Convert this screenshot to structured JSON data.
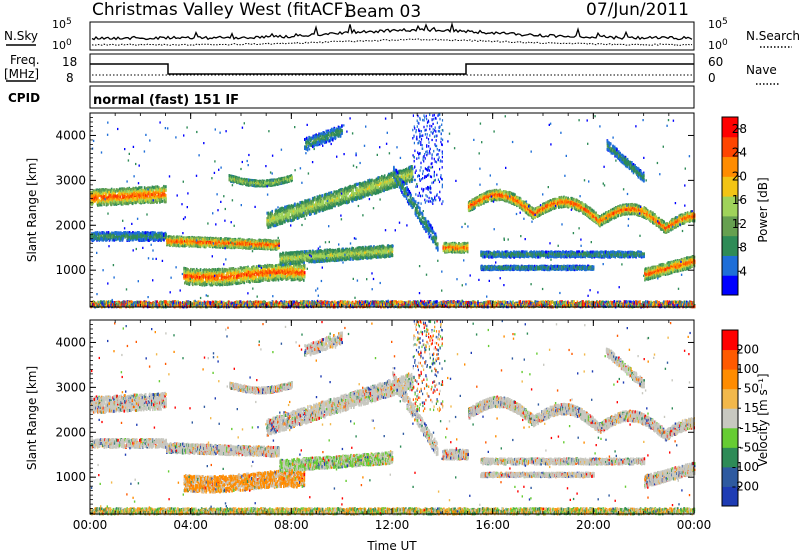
{
  "header": {
    "station": "Christmas Valley West (fitACF)",
    "beam": "Beam 03",
    "date": "07/Jun/2011"
  },
  "noise_panel": {
    "left_label": "N.Sky",
    "right_label": "N.Search",
    "y_top": "10^5",
    "y_bottom": "10^0",
    "y_top_right": "10^5",
    "y_bottom_right": "10^0"
  },
  "freq_panel": {
    "left_label": "Freq.",
    "left_unit": "[MHz]",
    "left_ticks": [
      "18",
      "8"
    ],
    "right_label": "Nave",
    "right_ticks": [
      "60",
      "0"
    ]
  },
  "cpid_panel": {
    "label": "CPID",
    "text": "normal (fast) 151 IF"
  },
  "chart_data": [
    {
      "type": "heatmap",
      "name": "power",
      "xlabel": "",
      "ylabel": "Slant Range [km]",
      "x_ticks": [
        "00:00",
        "04:00",
        "08:00",
        "12:00",
        "16:00",
        "20:00",
        "00:00"
      ],
      "xlim_hours": [
        0,
        24
      ],
      "y_ticks": [
        "1000",
        "2000",
        "3000",
        "4000"
      ],
      "ylim_km": [
        180,
        4500
      ],
      "colorbar": {
        "label": "Power [dB]",
        "ticks": [
          "4",
          "8",
          "12",
          "16",
          "20",
          "24",
          "28"
        ],
        "range": [
          0,
          30
        ],
        "colors": [
          "#0000ff",
          "#1e6ed8",
          "#2e8b57",
          "#66a050",
          "#9fd35a",
          "#f2c415",
          "#ff8c00",
          "#ff4500",
          "#ff0000"
        ]
      }
    },
    {
      "type": "heatmap",
      "name": "velocity",
      "xlabel": "Time UT",
      "ylabel": "Slant Range [km]",
      "x_ticks": [
        "00:00",
        "04:00",
        "08:00",
        "12:00",
        "16:00",
        "20:00",
        "00:00"
      ],
      "xlim_hours": [
        0,
        24
      ],
      "y_ticks": [
        "1000",
        "2000",
        "3000",
        "4000"
      ],
      "ylim_km": [
        180,
        4500
      ],
      "colorbar": {
        "label": "Velocity [m s⁻¹]",
        "ticks": [
          "200",
          "100",
          "50",
          "15",
          "-15",
          "-50",
          "-100",
          "-200"
        ],
        "colors": [
          "#1e3cb4",
          "#2e5aa0",
          "#2e8b57",
          "#66cc33",
          "#c8c8c0",
          "#f2b84b",
          "#ff8c00",
          "#ff5a00",
          "#ff0000"
        ]
      }
    }
  ],
  "colors": {
    "frame": "#000000",
    "background": "#ffffff"
  }
}
